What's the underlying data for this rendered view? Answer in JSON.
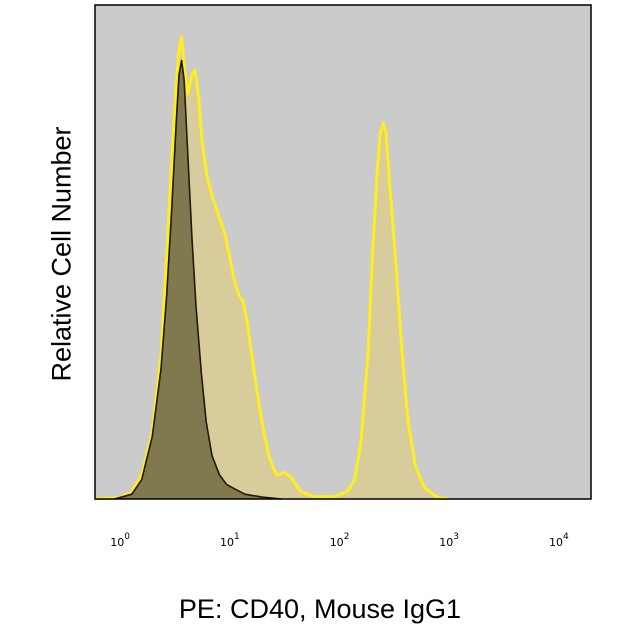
{
  "chart_data": {
    "type": "area",
    "xscale": "log",
    "xlim": [
      0.6,
      20000
    ],
    "ylim": [
      0,
      100
    ],
    "xlabel": "PE: CD40, Mouse IgG1",
    "ylabel": "Relative Cell Number",
    "xticks": [
      {
        "base": "10",
        "exp": "0",
        "value": 1
      },
      {
        "base": "10",
        "exp": "1",
        "value": 10
      },
      {
        "base": "10",
        "exp": "2",
        "value": 100
      },
      {
        "base": "10",
        "exp": "3",
        "value": 1000
      },
      {
        "base": "10",
        "exp": "4",
        "value": 10000
      }
    ],
    "grid": false,
    "plot_background": "#cbcbcb",
    "series": [
      {
        "fill": "#d9cc9c",
        "stroke": "#ffee1f",
        "points": [
          [
            0.6,
            0
          ],
          [
            1.0,
            0.3
          ],
          [
            1.3,
            1.5
          ],
          [
            1.6,
            5
          ],
          [
            2.0,
            14
          ],
          [
            2.4,
            30
          ],
          [
            2.7,
            50
          ],
          [
            3.0,
            70
          ],
          [
            3.3,
            86
          ],
          [
            3.5,
            93
          ],
          [
            3.7,
            96
          ],
          [
            3.9,
            90
          ],
          [
            4.2,
            84
          ],
          [
            4.6,
            88
          ],
          [
            4.9,
            89
          ],
          [
            5.3,
            83
          ],
          [
            5.7,
            74
          ],
          [
            6.3,
            67
          ],
          [
            7.0,
            63
          ],
          [
            8.0,
            59
          ],
          [
            9.2,
            55
          ],
          [
            10.2,
            50
          ],
          [
            11.0,
            46
          ],
          [
            12.5,
            42
          ],
          [
            13.5,
            41
          ],
          [
            14.8,
            36
          ],
          [
            17.0,
            26
          ],
          [
            20.0,
            16
          ],
          [
            23.0,
            9
          ],
          [
            27.0,
            5
          ],
          [
            32.0,
            5.5
          ],
          [
            37.0,
            4.5
          ],
          [
            45.0,
            1.5
          ],
          [
            60.0,
            0.5
          ],
          [
            90.0,
            0.5
          ],
          [
            120.0,
            1.5
          ],
          [
            140.0,
            4
          ],
          [
            160.0,
            12
          ],
          [
            185.0,
            30
          ],
          [
            205.0,
            52
          ],
          [
            225.0,
            68
          ],
          [
            240.0,
            76
          ],
          [
            255.0,
            78
          ],
          [
            270.0,
            76
          ],
          [
            290.0,
            66
          ],
          [
            330.0,
            50
          ],
          [
            380.0,
            30
          ],
          [
            430.0,
            16
          ],
          [
            500.0,
            7
          ],
          [
            600.0,
            2.5
          ],
          [
            800.0,
            0.3
          ],
          [
            1000.0,
            0
          ]
        ]
      },
      {
        "fill": "#807950",
        "stroke": "#1e1a06",
        "points": [
          [
            0.9,
            0
          ],
          [
            1.3,
            1
          ],
          [
            1.6,
            4
          ],
          [
            2.0,
            13
          ],
          [
            2.4,
            27
          ],
          [
            2.7,
            42
          ],
          [
            3.0,
            60
          ],
          [
            3.3,
            78
          ],
          [
            3.5,
            88
          ],
          [
            3.7,
            91
          ],
          [
            3.9,
            87
          ],
          [
            4.2,
            72
          ],
          [
            4.6,
            54
          ],
          [
            5.0,
            40
          ],
          [
            5.6,
            26
          ],
          [
            6.2,
            16
          ],
          [
            7.0,
            9
          ],
          [
            8.2,
            5
          ],
          [
            9.5,
            3
          ],
          [
            11.5,
            2
          ],
          [
            14.0,
            1
          ],
          [
            20.0,
            0.4
          ],
          [
            30.0,
            0
          ]
        ]
      }
    ]
  }
}
